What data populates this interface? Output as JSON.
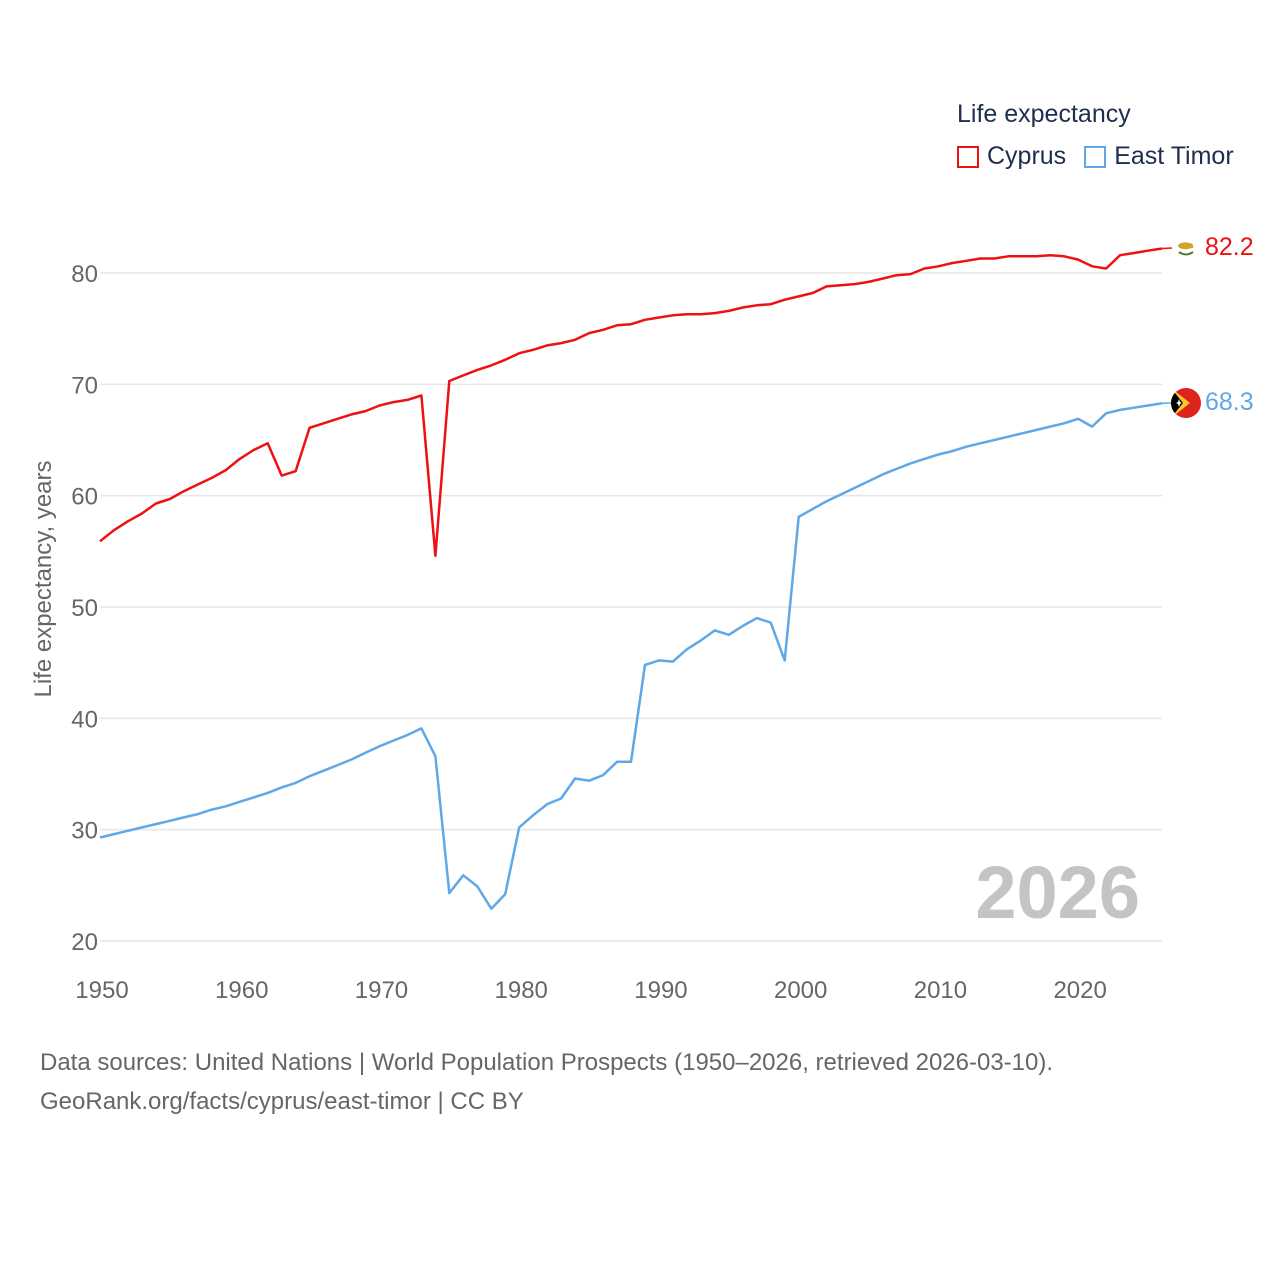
{
  "legend": {
    "title": "Life expectancy",
    "items": [
      {
        "label": "Cyprus",
        "color": "#ee1111"
      },
      {
        "label": "East Timor",
        "color": "#5fa8e8"
      }
    ]
  },
  "watermark_year": "2026",
  "source_line1": "Data sources: United Nations | World Population Prospects (1950–2026, retrieved 2026-03-10).",
  "source_line2": "GeoRank.org/facts/cyprus/east-timor | CC BY",
  "chart_data": {
    "type": "line",
    "title": "",
    "xlabel": "",
    "ylabel": "Life expectancy, years",
    "xlim": [
      1950,
      2026
    ],
    "ylim": [
      20,
      84
    ],
    "xticks": [
      1950,
      1960,
      1970,
      1980,
      1990,
      2000,
      2010,
      2020
    ],
    "yticks": [
      20,
      30,
      40,
      50,
      60,
      70,
      80
    ],
    "grid": true,
    "x": [
      1950,
      1951,
      1952,
      1953,
      1954,
      1955,
      1956,
      1957,
      1958,
      1959,
      1960,
      1961,
      1962,
      1963,
      1964,
      1965,
      1966,
      1967,
      1968,
      1969,
      1970,
      1971,
      1972,
      1973,
      1974,
      1975,
      1976,
      1977,
      1978,
      1979,
      1980,
      1981,
      1982,
      1983,
      1984,
      1985,
      1986,
      1987,
      1988,
      1989,
      1990,
      1991,
      1992,
      1993,
      1994,
      1995,
      1996,
      1997,
      1998,
      1999,
      2000,
      2001,
      2002,
      2003,
      2004,
      2005,
      2006,
      2007,
      2008,
      2009,
      2010,
      2011,
      2012,
      2013,
      2014,
      2015,
      2016,
      2017,
      2018,
      2019,
      2020,
      2021,
      2022,
      2023,
      2024,
      2025,
      2026
    ],
    "series": [
      {
        "name": "Cyprus",
        "color": "#ee1111",
        "end_label": "82.2",
        "values": [
          55.9,
          56.9,
          57.7,
          58.4,
          59.3,
          59.7,
          60.4,
          61.0,
          61.6,
          62.3,
          63.3,
          64.1,
          64.7,
          61.8,
          62.2,
          66.1,
          66.5,
          66.9,
          67.3,
          67.6,
          68.1,
          68.4,
          68.6,
          69.0,
          54.6,
          70.3,
          70.8,
          71.3,
          71.7,
          72.2,
          72.8,
          73.1,
          73.5,
          73.7,
          74.0,
          74.6,
          74.9,
          75.3,
          75.4,
          75.8,
          76.0,
          76.2,
          76.3,
          76.3,
          76.4,
          76.6,
          76.9,
          77.1,
          77.2,
          77.6,
          77.9,
          78.2,
          78.8,
          78.9,
          79.0,
          79.2,
          79.5,
          79.8,
          79.9,
          80.4,
          80.6,
          80.9,
          81.1,
          81.3,
          81.3,
          81.5,
          81.5,
          81.5,
          81.6,
          81.5,
          81.2,
          80.6,
          80.4,
          81.6,
          81.8,
          82.0,
          82.2
        ]
      },
      {
        "name": "East Timor",
        "color": "#5fa8e8",
        "end_label": "68.3",
        "values": [
          29.3,
          29.6,
          29.9,
          30.2,
          30.5,
          30.8,
          31.1,
          31.4,
          31.8,
          32.1,
          32.5,
          32.9,
          33.3,
          33.8,
          34.2,
          34.8,
          35.3,
          35.8,
          36.3,
          36.9,
          37.5,
          38.0,
          38.5,
          39.1,
          36.6,
          24.3,
          25.9,
          24.9,
          22.9,
          24.2,
          30.2,
          31.3,
          32.3,
          32.8,
          34.6,
          34.4,
          34.9,
          36.1,
          36.1,
          44.8,
          45.2,
          45.1,
          46.2,
          47.0,
          47.9,
          47.5,
          48.3,
          49.0,
          48.6,
          45.2,
          58.1,
          58.8,
          59.5,
          60.1,
          60.7,
          61.3,
          61.9,
          62.4,
          62.9,
          63.3,
          63.7,
          64.0,
          64.4,
          64.7,
          65.0,
          65.3,
          65.6,
          65.9,
          66.2,
          66.5,
          66.9,
          66.2,
          67.4,
          67.7,
          67.9,
          68.1,
          68.3
        ]
      }
    ]
  }
}
